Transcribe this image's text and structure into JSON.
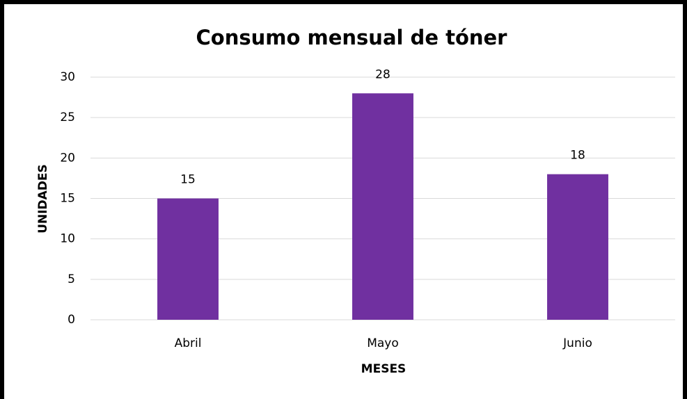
{
  "chart_data": {
    "type": "bar",
    "title": "Consumo mensual de tóner",
    "categories": [
      "Abril",
      "Mayo",
      "Junio"
    ],
    "values": [
      15,
      28,
      18
    ],
    "color": "#7030a0",
    "xlabel": "MESES",
    "ylabel": "UNIDADES",
    "ylim": [
      0,
      30
    ],
    "yticks": [
      0,
      5,
      10,
      15,
      20,
      25,
      30
    ],
    "grid": true,
    "data_labels": true
  }
}
